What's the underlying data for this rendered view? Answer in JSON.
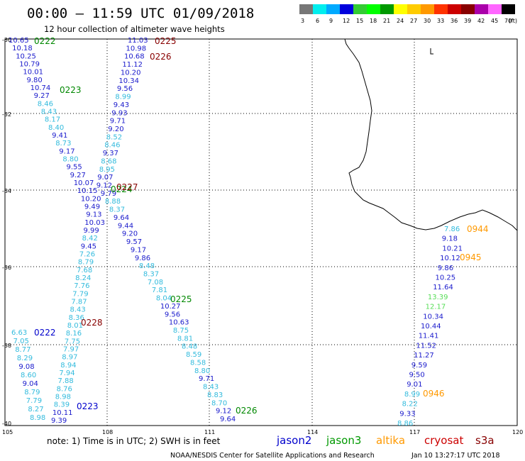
{
  "header": {
    "title": "00:00 – 11:59 UTC 01/09/2018",
    "subtitle": "12 hour collection of altimeter wave heights"
  },
  "legend": {
    "unit": "(ft)",
    "ticks": [
      "3",
      "6",
      "9",
      "12",
      "15",
      "18",
      "21",
      "24",
      "27",
      "30",
      "33",
      "36",
      "39",
      "42",
      "45",
      "70"
    ],
    "colors": [
      "#777777",
      "#00eeee",
      "#00aaff",
      "#0000dd",
      "#33cc33",
      "#00ff00",
      "#009900",
      "#ffff00",
      "#ffcc00",
      "#ff9900",
      "#ff3300",
      "#cc0000",
      "#880000",
      "#aa00aa",
      "#ff66ff",
      "#000000"
    ]
  },
  "map": {
    "lon_range": [
      105,
      120
    ],
    "lat_range": [
      -40,
      -30
    ],
    "lon_ticks": [
      "105",
      "108",
      "111",
      "114",
      "117",
      "120"
    ],
    "lat_ticks": [
      "-30",
      "-32",
      "-34",
      "-36",
      "-38",
      "-40"
    ]
  },
  "passes": [
    {
      "id": "0222-top",
      "label": "0222",
      "color": "#008800"
    },
    {
      "id": "0223-top",
      "label": "0223",
      "color": "#008800"
    },
    {
      "id": "0225-top",
      "label": "0225",
      "color": "#880000"
    },
    {
      "id": "0226-top",
      "label": "0226",
      "color": "#880000"
    },
    {
      "id": "0224-mid",
      "label": "0224",
      "color": "#008800"
    },
    {
      "id": "0227-mid",
      "label": "0227",
      "color": "#880000"
    },
    {
      "id": "0225-mid",
      "label": "0225",
      "color": "#008800"
    },
    {
      "id": "0228-mid",
      "label": "0228",
      "color": "#880000"
    },
    {
      "id": "0222-low",
      "label": "0222",
      "color": "#0000cc"
    },
    {
      "id": "0223-low",
      "label": "0223",
      "color": "#0000cc"
    },
    {
      "id": "0226-low",
      "label": "0226",
      "color": "#008800"
    },
    {
      "id": "0944",
      "label": "0944",
      "color": "#ff9900"
    },
    {
      "id": "0945",
      "label": "0945",
      "color": "#ff9900"
    },
    {
      "id": "0946",
      "label": "0946",
      "color": "#ff9900"
    }
  ],
  "tracks": {
    "A": {
      "name": "track-descending-left",
      "values": [
        "10.65",
        "10.18",
        "10.25",
        "10.79",
        "10.01",
        "9.80",
        "10.74",
        "9.27",
        "8.46",
        "8.43",
        "8.17",
        "8.40",
        "9.41",
        "8.73",
        "9.17",
        "8.80",
        "9.55",
        "9.27",
        "10.07",
        "10.15",
        "10.20",
        "9.49",
        "9.13",
        "10.03",
        "9.99",
        "8.42",
        "9.45",
        "7.26",
        "8.79",
        "7.68",
        "8.24",
        "7.76",
        "7.79",
        "7.87",
        "8.43",
        "8.36",
        "8.01",
        "8.16",
        "7.75",
        "7.97",
        "8.97",
        "8.94",
        "7.94",
        "7.88",
        "8.76",
        "8.98",
        "8.39",
        "10.11",
        "9.39"
      ]
    },
    "B": {
      "name": "track-descending-right",
      "values": [
        "11.03",
        "10.98",
        "10.68",
        "11.12",
        "10.20",
        "10.34",
        "9.56",
        "8.99",
        "9.43",
        "9.93",
        "9.71",
        "9.20",
        "8.52",
        "8.46",
        "9.37",
        "8.68",
        "8.95",
        "9.07",
        "9.12",
        "9.79",
        "8.88",
        "8.37",
        "9.64",
        "9.44",
        "9.20",
        "9.57",
        "9.17",
        "9.86",
        "8.48",
        "8.37",
        "7.08",
        "7.81",
        "8.04",
        "10.27",
        "9.56",
        "10.63",
        "8.75",
        "8.81",
        "8.48",
        "8.59",
        "8.58",
        "8.80",
        "9.71",
        "8.43",
        "8.83",
        "8.70",
        "9.12",
        "9.64"
      ]
    },
    "C": {
      "name": "track-lower-left",
      "values": [
        "6.63",
        "7.05",
        "8.77",
        "8.29",
        "9.08",
        "8.60",
        "9.04",
        "8.79",
        "7.79",
        "8.27",
        "8.98"
      ]
    },
    "D": {
      "name": "track-east",
      "values": [
        "7.86",
        "9.18",
        "10.21",
        "10.12",
        "9.86",
        "10.25",
        "11.64",
        "13.39",
        "12.17",
        "10.34",
        "10.44",
        "11.41",
        "11.52",
        "11.27",
        "9.59",
        "9.50",
        "9.01",
        "8.99",
        "8.22",
        "9.33",
        "8.86"
      ]
    }
  },
  "notes": {
    "note": "note:  1) Time is in UTC;  2) SWH is in feet"
  },
  "satellites": [
    {
      "name": "jason2",
      "color": "#0000cc"
    },
    {
      "name": "jason3",
      "color": "#009900"
    },
    {
      "name": "altika",
      "color": "#ff9900"
    },
    {
      "name": "cryosat",
      "color": "#cc0000"
    },
    {
      "name": "s3a",
      "color": "#880000"
    }
  ],
  "footer": {
    "credit": "NOAA/NESDIS Center for Satellite Applications and Research",
    "timestamp": "Jan 10 13:27:17 UTC 2018"
  }
}
